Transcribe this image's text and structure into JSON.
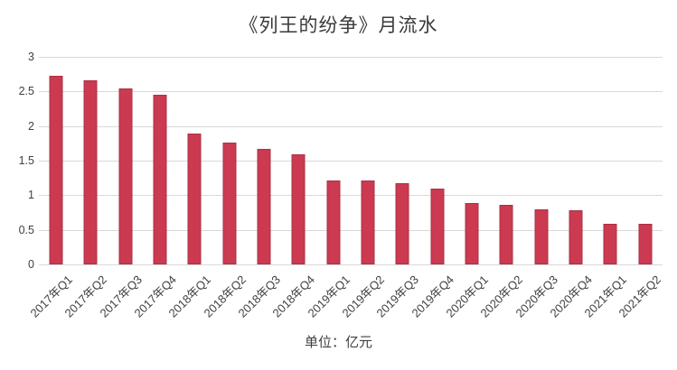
{
  "page": {
    "background": "#ffffff"
  },
  "chart_data": {
    "type": "bar",
    "title": "《列王的纷争》月流水",
    "footnote": "单位：亿元",
    "categories": [
      "2017年Q1",
      "2017年Q2",
      "2017年Q3",
      "2017年Q4",
      "2018年Q1",
      "2018年Q2",
      "2018年Q3",
      "2018年Q4",
      "2019年Q1",
      "2019年Q2",
      "2019年Q3",
      "2019年Q4",
      "2020年Q1",
      "2020年Q2",
      "2020年Q3",
      "2020年Q4",
      "2021年Q1",
      "2021年Q2"
    ],
    "values": [
      2.72,
      2.66,
      2.55,
      2.45,
      1.89,
      1.76,
      1.67,
      1.59,
      1.21,
      1.21,
      1.18,
      1.09,
      0.89,
      0.86,
      0.8,
      0.78,
      0.59,
      0.59
    ],
    "xlabel": "",
    "ylabel": "",
    "ylim": [
      0,
      3
    ],
    "yticks": [
      "0",
      "0.5",
      "1",
      "1.5",
      "2",
      "2.5",
      "3"
    ],
    "grid": "horizontal",
    "legend": "none",
    "bar_color": "#cb3a50",
    "bar_border_color": "#aa3144",
    "grid_color": "#d9d9d9",
    "text_color": "#404040"
  }
}
